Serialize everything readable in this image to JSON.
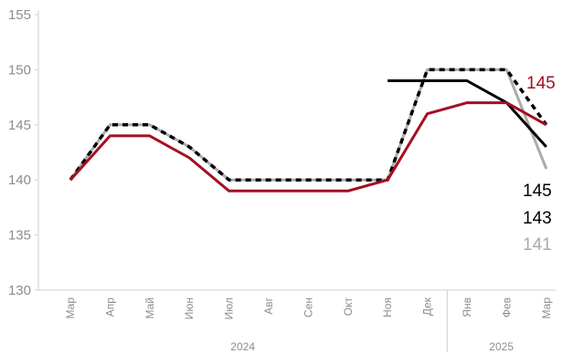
{
  "chart_data": {
    "type": "line",
    "title": "",
    "xlabel": "",
    "ylabel": "",
    "ylim": [
      130,
      155
    ],
    "yticks": [
      130,
      135,
      140,
      145,
      150,
      155
    ],
    "grid": false,
    "categories": [
      "Мар",
      "Апр",
      "Май",
      "Июн",
      "Июл",
      "Авг",
      "Сен",
      "Окт",
      "Ноя",
      "Дек",
      "Янв",
      "Фев",
      "Мар"
    ],
    "year_groups": [
      {
        "label": "2024",
        "from": 0,
        "to": 9
      },
      {
        "label": "2025",
        "from": 10,
        "to": 12
      }
    ],
    "series": [
      {
        "color": "#ababab",
        "style": "solid",
        "values": [
          140,
          145,
          145,
          143,
          140,
          140,
          140,
          140,
          140,
          150,
          150,
          150,
          141
        ]
      },
      {
        "color": "#000000",
        "style": "solid",
        "values": [
          null,
          null,
          null,
          null,
          null,
          null,
          null,
          null,
          149,
          149,
          149,
          147,
          143
        ]
      },
      {
        "color": "#000000",
        "style": "dashed",
        "values": [
          140,
          145,
          145,
          143,
          140,
          140,
          140,
          140,
          140,
          150,
          150,
          150,
          145
        ]
      },
      {
        "color": "#a50f23",
        "style": "solid",
        "values": [
          140,
          144,
          144,
          142,
          139,
          139,
          139,
          139,
          140,
          146,
          147,
          147,
          145
        ]
      }
    ],
    "end_labels": [
      {
        "text": "145",
        "color": "#a50f23",
        "value": 145
      },
      {
        "text": "145",
        "color": "#000000",
        "value": 145
      },
      {
        "text": "143",
        "color": "#000000",
        "value": 143
      },
      {
        "text": "141",
        "color": "#ababab",
        "value": 141
      }
    ]
  }
}
